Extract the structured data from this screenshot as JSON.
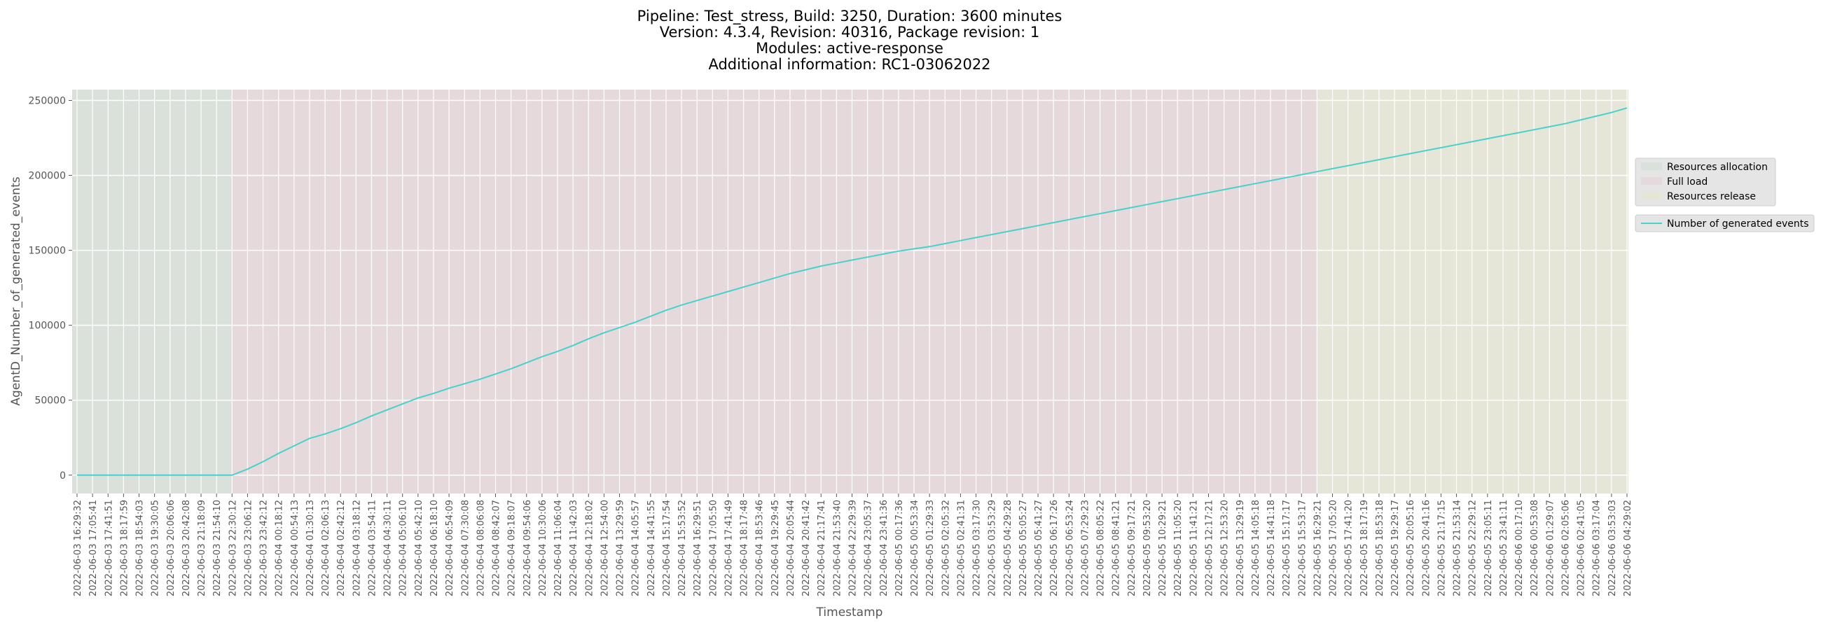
{
  "chart_data": {
    "type": "line",
    "title": [
      "Pipeline: Test_stress, Build: 3250, Duration: 3600 minutes",
      "Version: 4.3.4, Revision: 40316, Package revision: 1",
      "Modules: active-response",
      "Additional information: RC1-03062022"
    ],
    "x_label": "Timestamp",
    "y_label": "AgentD_Number_of_generated_events",
    "categories": [
      "2022-06-03 16:29:32",
      "2022-06-03 17:05:41",
      "2022-06-03 17:41:51",
      "2022-06-03 18:17:59",
      "2022-06-03 18:54:03",
      "2022-06-03 19:30:05",
      "2022-06-03 20:06:06",
      "2022-06-03 20:42:08",
      "2022-06-03 21:18:09",
      "2022-06-03 21:54:10",
      "2022-06-03 22:30:12",
      "2022-06-03 23:06:12",
      "2022-06-03 23:42:12",
      "2022-06-04 00:18:12",
      "2022-06-04 00:54:13",
      "2022-06-04 01:30:13",
      "2022-06-04 02:06:13",
      "2022-06-04 02:42:12",
      "2022-06-04 03:18:12",
      "2022-06-04 03:54:11",
      "2022-06-04 04:30:11",
      "2022-06-04 05:06:10",
      "2022-06-04 05:42:10",
      "2022-06-04 06:18:10",
      "2022-06-04 06:54:09",
      "2022-06-04 07:30:08",
      "2022-06-04 08:06:08",
      "2022-06-04 08:42:07",
      "2022-06-04 09:18:07",
      "2022-06-04 09:54:06",
      "2022-06-04 10:30:06",
      "2022-06-04 11:06:04",
      "2022-06-04 11:42:03",
      "2022-06-04 12:18:02",
      "2022-06-04 12:54:00",
      "2022-06-04 13:29:59",
      "2022-06-04 14:05:57",
      "2022-06-04 14:41:55",
      "2022-06-04 15:17:54",
      "2022-06-04 15:53:52",
      "2022-06-04 16:29:51",
      "2022-06-04 17:05:50",
      "2022-06-04 17:41:49",
      "2022-06-04 18:17:48",
      "2022-06-04 18:53:46",
      "2022-06-04 19:29:45",
      "2022-06-04 20:05:44",
      "2022-06-04 20:41:42",
      "2022-06-04 21:17:41",
      "2022-06-04 21:53:40",
      "2022-06-04 22:29:39",
      "2022-06-04 23:05:37",
      "2022-06-04 23:41:36",
      "2022-06-05 00:17:36",
      "2022-06-05 00:53:34",
      "2022-06-05 01:29:33",
      "2022-06-05 02:05:32",
      "2022-06-05 02:41:31",
      "2022-06-05 03:17:30",
      "2022-06-05 03:53:29",
      "2022-06-05 04:29:28",
      "2022-06-05 05:05:27",
      "2022-06-05 05:41:27",
      "2022-06-05 06:17:26",
      "2022-06-05 06:53:24",
      "2022-06-05 07:29:23",
      "2022-06-05 08:05:22",
      "2022-06-05 08:41:21",
      "2022-06-05 09:17:21",
      "2022-06-05 09:53:20",
      "2022-06-05 10:29:21",
      "2022-06-05 11:05:20",
      "2022-06-05 11:41:21",
      "2022-06-05 12:17:21",
      "2022-06-05 12:53:20",
      "2022-06-05 13:29:19",
      "2022-06-05 14:05:18",
      "2022-06-05 14:41:18",
      "2022-06-05 15:17:17",
      "2022-06-05 15:53:17",
      "2022-06-05 16:29:21",
      "2022-06-05 17:05:20",
      "2022-06-05 17:41:20",
      "2022-06-05 18:17:19",
      "2022-06-05 18:53:18",
      "2022-06-05 19:29:17",
      "2022-06-05 20:05:16",
      "2022-06-05 20:41:16",
      "2022-06-05 21:17:15",
      "2022-06-05 21:53:14",
      "2022-06-05 22:29:12",
      "2022-06-05 23:05:11",
      "2022-06-05 23:41:11",
      "2022-06-06 00:17:10",
      "2022-06-06 00:53:08",
      "2022-06-06 01:29:07",
      "2022-06-06 02:05:06",
      "2022-06-06 02:41:05",
      "2022-06-06 03:17:04",
      "2022-06-06 03:53:03",
      "2022-06-06 04:29:02"
    ],
    "series": [
      {
        "name": "Number of generated events",
        "color": "#48d1cc",
        "values": [
          0,
          0,
          0,
          0,
          0,
          0,
          0,
          0,
          0,
          0,
          0,
          4000,
          9000,
          14500,
          19500,
          24500,
          27500,
          31000,
          35000,
          39500,
          43500,
          47500,
          51500,
          54500,
          58000,
          61000,
          64000,
          67500,
          71000,
          75000,
          79000,
          82500,
          86500,
          91000,
          95000,
          98500,
          102000,
          106000,
          110000,
          113500,
          116500,
          119500,
          122500,
          125500,
          128500,
          131500,
          134500,
          137000,
          139500,
          141500,
          143500,
          145500,
          147500,
          149500,
          151000,
          152500,
          154500,
          156500,
          158500,
          160500,
          162500,
          164500,
          166500,
          168500,
          170500,
          172500,
          174500,
          176500,
          178500,
          180500,
          182500,
          184500,
          186500,
          188500,
          190500,
          192500,
          194500,
          196500,
          198500,
          200500,
          202500,
          204500,
          206500,
          208500,
          210500,
          212500,
          214500,
          216500,
          218500,
          220500,
          222500,
          224500,
          226500,
          228500,
          230500,
          232500,
          234500,
          237000,
          239500,
          242000,
          245000
        ]
      }
    ],
    "spans": [
      {
        "name": "Resources allocation",
        "color": "#d9e1da",
        "start": "2022-06-03 16:29:32",
        "end": "2022-06-03 22:30:12"
      },
      {
        "name": "Full load",
        "color": "#e6d9db",
        "start": "2022-06-03 22:30:12",
        "end": "2022-06-05 16:29:21"
      },
      {
        "name": "Resources release",
        "color": "#e5e6d8",
        "start": "2022-06-05 16:29:21",
        "end": "2022-06-06 04:29:02"
      }
    ],
    "ylim": [
      -12250,
      257250
    ],
    "yticks": [
      0,
      50000,
      100000,
      150000,
      200000,
      250000
    ],
    "grid": true
  }
}
